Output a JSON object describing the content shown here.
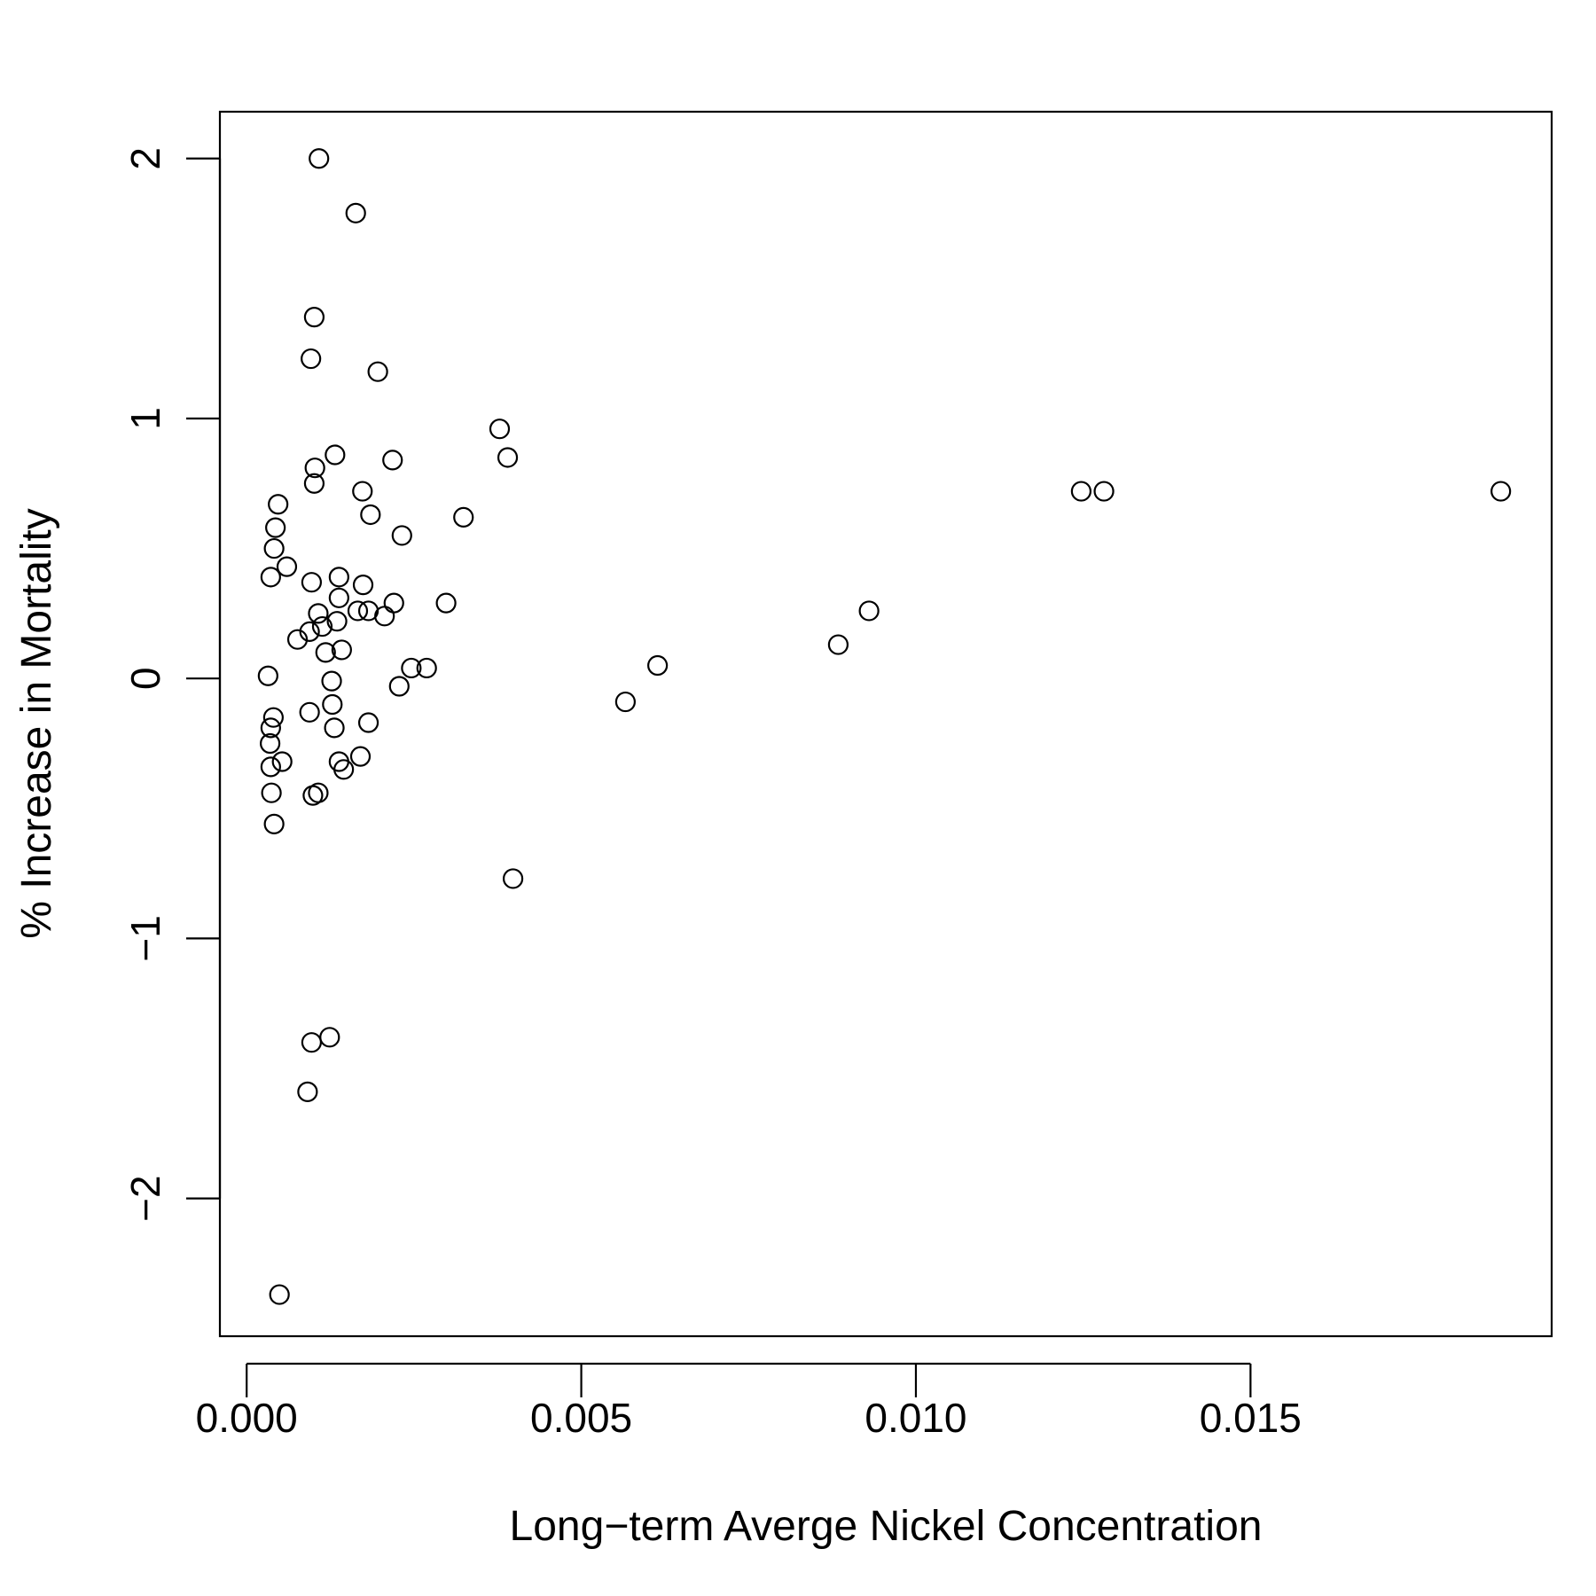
{
  "chart_data": {
    "type": "scatter",
    "title": "",
    "xlabel": "Long−term Averge Nickel Concentration",
    "ylabel": "% Increase in Mortality",
    "xlim": [
      -0.0004,
      0.0195
    ],
    "ylim": [
      -2.53,
      2.18
    ],
    "x_ticks": [
      0.0,
      0.005,
      0.01,
      0.015
    ],
    "x_tick_labels": [
      "0.000",
      "0.005",
      "0.010",
      "0.015"
    ],
    "y_ticks": [
      -2,
      -1,
      0,
      1,
      2
    ],
    "y_tick_labels": [
      "−2",
      "−1",
      "0",
      "1",
      "2"
    ],
    "grid": false,
    "legend": "none",
    "marker": "open-circle",
    "colors": {
      "points": "#000000",
      "axes": "#000000",
      "background": "#ffffff"
    },
    "series": [
      {
        "points": [
          [
            0.00108,
            2.0
          ],
          [
            0.00163,
            1.79
          ],
          [
            0.00101,
            1.39
          ],
          [
            0.00096,
            1.23
          ],
          [
            0.00196,
            1.18
          ],
          [
            0.00378,
            0.96
          ],
          [
            0.0039,
            0.85
          ],
          [
            0.00132,
            0.86
          ],
          [
            0.00218,
            0.84
          ],
          [
            0.00102,
            0.81
          ],
          [
            0.00101,
            0.75
          ],
          [
            0.00173,
            0.72
          ],
          [
            0.00047,
            0.67
          ],
          [
            0.00185,
            0.63
          ],
          [
            0.00324,
            0.62
          ],
          [
            0.00043,
            0.58
          ],
          [
            0.00232,
            0.55
          ],
          [
            0.00041,
            0.5
          ],
          [
            0.0006,
            0.43
          ],
          [
            0.00036,
            0.39
          ],
          [
            0.00138,
            0.39
          ],
          [
            0.00097,
            0.37
          ],
          [
            0.00174,
            0.36
          ],
          [
            0.00138,
            0.31
          ],
          [
            0.00298,
            0.29
          ],
          [
            0.0022,
            0.29
          ],
          [
            0.00166,
            0.26
          ],
          [
            0.00182,
            0.26
          ],
          [
            0.00107,
            0.25
          ],
          [
            0.00206,
            0.24
          ],
          [
            0.00135,
            0.22
          ],
          [
            0.00113,
            0.2
          ],
          [
            0.00094,
            0.18
          ],
          [
            0.00076,
            0.15
          ],
          [
            0.00142,
            0.11
          ],
          [
            0.00118,
            0.1
          ],
          [
            0.00246,
            0.04
          ],
          [
            0.00269,
            0.04
          ],
          [
            0.00032,
            0.01
          ],
          [
            0.00127,
            -0.01
          ],
          [
            0.00228,
            -0.03
          ],
          [
            0.00566,
            -0.09
          ],
          [
            0.00128,
            -0.1
          ],
          [
            0.00094,
            -0.13
          ],
          [
            0.0004,
            -0.15
          ],
          [
            0.00182,
            -0.17
          ],
          [
            0.00036,
            -0.19
          ],
          [
            0.00131,
            -0.19
          ],
          [
            0.00035,
            -0.25
          ],
          [
            0.0017,
            -0.3
          ],
          [
            0.00053,
            -0.32
          ],
          [
            0.00138,
            -0.32
          ],
          [
            0.00036,
            -0.34
          ],
          [
            0.00145,
            -0.35
          ],
          [
            0.00107,
            -0.44
          ],
          [
            0.00037,
            -0.44
          ],
          [
            0.00099,
            -0.45
          ],
          [
            0.00041,
            -0.56
          ],
          [
            0.00398,
            -0.77
          ],
          [
            0.00124,
            -1.38
          ],
          [
            0.00097,
            -1.4
          ],
          [
            0.00091,
            -1.59
          ],
          [
            0.00049,
            -2.37
          ],
          [
            0.00614,
            0.05
          ],
          [
            0.00884,
            0.13
          ],
          [
            0.0093,
            0.26
          ],
          [
            0.01247,
            0.72
          ],
          [
            0.01281,
            0.72
          ],
          [
            0.01874,
            0.72
          ]
        ]
      }
    ]
  }
}
